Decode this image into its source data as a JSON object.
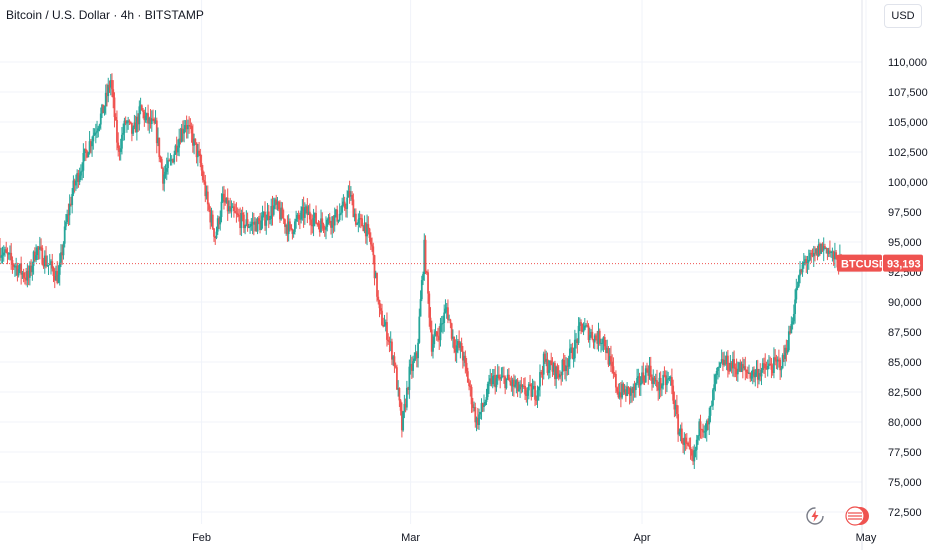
{
  "header": {
    "title": "Bitcoin / U.S. Dollar · 4h · BITSTAMP",
    "currency": "USD"
  },
  "colors": {
    "up": "#26a69a",
    "down": "#ef5350",
    "price_line": "#ef5350",
    "grid": "#f0f3fa",
    "axis_border": "#e0e3eb"
  },
  "icons": {
    "replay": "lightning-replay-icon",
    "flag": "us-flag-icon"
  },
  "chart_data": {
    "type": "candlestick",
    "symbol": "BTCUSD",
    "interval": "4h",
    "exchange": "BITSTAMP",
    "current_price": 93193,
    "current_price_label": "93,193",
    "price_badge_label": "BTCUSD",
    "ylim": [
      71500,
      113500
    ],
    "y_ticks": [
      72500,
      75000,
      77500,
      80000,
      82500,
      85000,
      87500,
      90000,
      92500,
      95000,
      97500,
      100000,
      102500,
      105000,
      107500,
      110000
    ],
    "y_tick_labels": [
      "72,500",
      "75,000",
      "77,500",
      "80,000",
      "82,500",
      "85,000",
      "87,500",
      "90,000",
      "92,500",
      "95,000",
      "97,500",
      "100,000",
      "102,500",
      "105,000",
      "107,500",
      "110,000"
    ],
    "x_start": "2025-01-05",
    "x_end": "2025-05-01",
    "x_ticks": [
      {
        "label": "Feb",
        "date": "2025-02-01"
      },
      {
        "label": "Mar",
        "date": "2025-03-01"
      },
      {
        "label": "Apr",
        "date": "2025-04-01"
      },
      {
        "label": "May",
        "date": "2025-05-01"
      }
    ],
    "x_price_path": [
      [
        "2025-01-05",
        94500
      ],
      [
        "2025-01-08",
        92500
      ],
      [
        "2025-01-09",
        92000
      ],
      [
        "2025-01-10",
        94500
      ],
      [
        "2025-01-13",
        92000
      ],
      [
        "2025-01-14",
        96500
      ],
      [
        "2025-01-15",
        99500
      ],
      [
        "2025-01-17",
        103000
      ],
      [
        "2025-01-18",
        104500
      ],
      [
        "2025-01-19",
        106000
      ],
      [
        "2025-01-20",
        108500
      ],
      [
        "2025-01-21",
        102500
      ],
      [
        "2025-01-22",
        105000
      ],
      [
        "2025-01-23",
        104000
      ],
      [
        "2025-01-24",
        106000
      ],
      [
        "2025-01-25",
        105000
      ],
      [
        "2025-01-26",
        104500
      ],
      [
        "2025-01-27",
        100500
      ],
      [
        "2025-01-28",
        101500
      ],
      [
        "2025-01-29",
        103500
      ],
      [
        "2025-01-30",
        105000
      ],
      [
        "2025-01-31",
        103500
      ],
      [
        "2025-02-01",
        101500
      ],
      [
        "2025-02-02",
        98000
      ],
      [
        "2025-02-03",
        95500
      ],
      [
        "2025-02-04",
        98500
      ],
      [
        "2025-02-05",
        97500
      ],
      [
        "2025-02-07",
        96500
      ],
      [
        "2025-02-09",
        96500
      ],
      [
        "2025-02-11",
        98000
      ],
      [
        "2025-02-13",
        96000
      ],
      [
        "2025-02-15",
        97500
      ],
      [
        "2025-02-17",
        96500
      ],
      [
        "2025-02-19",
        97000
      ],
      [
        "2025-02-20",
        97500
      ],
      [
        "2025-02-21",
        99000
      ],
      [
        "2025-02-22",
        96500
      ],
      [
        "2025-02-23",
        96500
      ],
      [
        "2025-02-24",
        94500
      ],
      [
        "2025-02-25",
        89000
      ],
      [
        "2025-02-26",
        87500
      ],
      [
        "2025-02-27",
        85000
      ],
      [
        "2025-02-28",
        79500
      ],
      [
        "2025-03-01",
        84000
      ],
      [
        "2025-03-02",
        85500
      ],
      [
        "2025-03-03",
        94500
      ],
      [
        "2025-03-04",
        86500
      ],
      [
        "2025-03-05",
        87500
      ],
      [
        "2025-03-06",
        89500
      ],
      [
        "2025-03-07",
        86500
      ],
      [
        "2025-03-08",
        86000
      ],
      [
        "2025-03-09",
        83000
      ],
      [
        "2025-03-10",
        80000
      ],
      [
        "2025-03-11",
        81500
      ],
      [
        "2025-03-12",
        83500
      ],
      [
        "2025-03-14",
        83500
      ],
      [
        "2025-03-16",
        82500
      ],
      [
        "2025-03-18",
        82500
      ],
      [
        "2025-03-19",
        85000
      ],
      [
        "2025-03-21",
        84000
      ],
      [
        "2025-03-23",
        86000
      ],
      [
        "2025-03-24",
        88000
      ],
      [
        "2025-03-26",
        87000
      ],
      [
        "2025-03-27",
        87000
      ],
      [
        "2025-03-28",
        84500
      ],
      [
        "2025-03-29",
        82500
      ],
      [
        "2025-03-31",
        82500
      ],
      [
        "2025-04-02",
        84500
      ],
      [
        "2025-04-03",
        83000
      ],
      [
        "2025-04-05",
        83500
      ],
      [
        "2025-04-06",
        79500
      ],
      [
        "2025-04-07",
        78000
      ],
      [
        "2025-04-08",
        76500
      ],
      [
        "2025-04-09",
        80000
      ],
      [
        "2025-04-10",
        79500
      ],
      [
        "2025-04-11",
        83500
      ],
      [
        "2025-04-12",
        85000
      ],
      [
        "2025-04-14",
        84500
      ],
      [
        "2025-04-16",
        84000
      ],
      [
        "2025-04-18",
        84500
      ],
      [
        "2025-04-20",
        85000
      ],
      [
        "2025-04-21",
        87500
      ],
      [
        "2025-04-22",
        91500
      ],
      [
        "2025-04-23",
        93500
      ],
      [
        "2025-04-24",
        93500
      ],
      [
        "2025-04-25",
        94500
      ],
      [
        "2025-04-26",
        94500
      ],
      [
        "2025-04-27",
        93500
      ],
      [
        "2025-04-28",
        93193
      ]
    ],
    "grid": true
  }
}
